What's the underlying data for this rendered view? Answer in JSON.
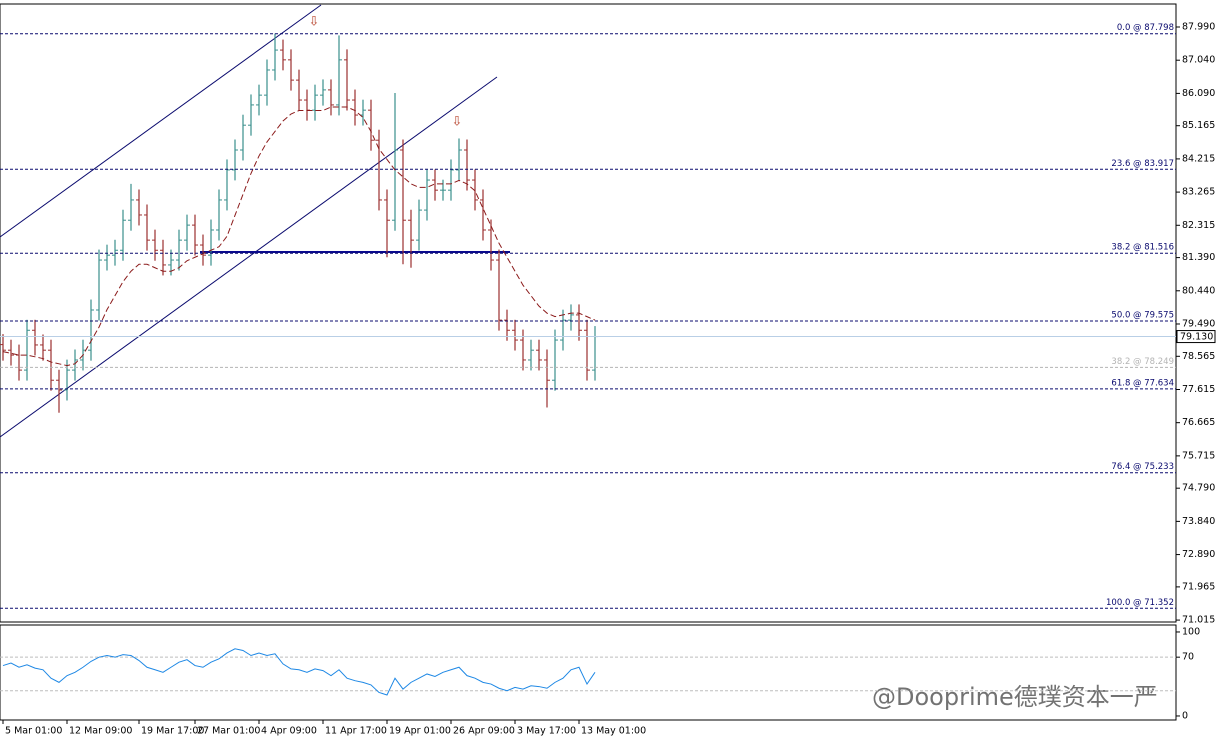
{
  "chart_data": [
    {
      "type": "ohlc",
      "categories": [
        "5 Mar 01:00",
        null,
        null,
        null,
        null,
        null,
        null,
        null,
        "12 Mar 09:00",
        null,
        null,
        null,
        null,
        null,
        null,
        null,
        null,
        "19 Mar 17:00",
        null,
        null,
        null,
        null,
        null,
        null,
        "27 Mar 01:00",
        null,
        null,
        null,
        null,
        null,
        null,
        null,
        "4 Apr 09:00",
        null,
        null,
        null,
        null,
        null,
        null,
        null,
        "11 Apr 17:00",
        null,
        null,
        null,
        null,
        null,
        null,
        null,
        "19 Apr 01:00",
        null,
        null,
        null,
        null,
        null,
        null,
        null,
        "26 Apr 09:00",
        null,
        null,
        null,
        null,
        null,
        null,
        null,
        "3 May 17:00",
        null,
        null,
        null,
        null,
        null,
        null,
        null,
        "13 May 01:00",
        null,
        null
      ],
      "open": [
        78.9,
        78.74,
        78.6,
        78.17,
        79.31,
        78.89,
        78.74,
        77.88,
        77.6,
        78.17,
        78.46,
        78.74,
        79.89,
        81.32,
        81.46,
        81.6,
        82.46,
        83.04,
        82.61,
        81.89,
        81.6,
        81.18,
        81.32,
        81.89,
        82.32,
        81.75,
        81.46,
        82.18,
        83.04,
        83.9,
        84.47,
        85.18,
        85.76,
        86.04,
        86.76,
        87.33,
        87.05,
        86.47,
        85.9,
        85.61,
        86.04,
        86.19,
        85.76,
        87.05,
        85.9,
        85.47,
        85.61,
        84.75,
        83.04,
        82.46,
        84.47,
        82.46,
        81.89,
        82.75,
        83.61,
        83.32,
        83.32,
        83.9,
        84.47,
        83.61,
        83.04,
        82.18,
        81.32,
        79.6,
        79.31,
        79.03,
        78.46,
        78.74,
        78.46,
        77.88,
        79.03,
        79.6,
        79.75,
        79.31,
        78.17
      ],
      "high": [
        79.2,
        79.04,
        78.9,
        79.61,
        79.61,
        79.19,
        79.04,
        78.18,
        78.47,
        78.76,
        79.04,
        80.19,
        81.62,
        81.76,
        81.9,
        82.76,
        83.5,
        83.34,
        82.91,
        82.19,
        81.9,
        81.62,
        82.19,
        82.62,
        82.62,
        82.05,
        82.48,
        83.34,
        84.2,
        84.77,
        85.48,
        86.06,
        86.34,
        87.06,
        87.8,
        87.63,
        87.35,
        86.77,
        86.2,
        86.34,
        86.49,
        86.49,
        87.75,
        87.35,
        86.2,
        85.91,
        85.91,
        85.05,
        83.34,
        86.1,
        84.77,
        82.76,
        83.05,
        83.91,
        83.91,
        83.62,
        84.2,
        84.8,
        84.77,
        83.91,
        83.34,
        82.48,
        81.62,
        79.9,
        79.61,
        79.33,
        79.04,
        79.04,
        78.76,
        79.33,
        79.9,
        80.05,
        80.05,
        79.61,
        79.43
      ],
      "low": [
        78.44,
        78.3,
        77.87,
        77.87,
        78.59,
        78.44,
        77.58,
        76.95,
        77.3,
        77.87,
        78.16,
        78.44,
        79.59,
        81.02,
        81.16,
        81.3,
        82.16,
        82.31,
        81.59,
        81.3,
        80.88,
        80.88,
        81.02,
        81.59,
        81.45,
        81.16,
        81.16,
        81.88,
        82.74,
        83.6,
        84.17,
        84.88,
        85.46,
        85.74,
        86.46,
        86.75,
        86.17,
        85.6,
        85.31,
        85.31,
        85.74,
        85.46,
        85.46,
        85.6,
        85.17,
        85.17,
        84.45,
        82.74,
        81.4,
        82.16,
        81.2,
        81.1,
        81.59,
        82.45,
        83.02,
        83.02,
        83.02,
        83.6,
        83.31,
        82.74,
        81.88,
        81.02,
        79.3,
        79.01,
        78.73,
        78.16,
        78.16,
        78.16,
        77.1,
        77.58,
        78.73,
        79.3,
        79.01,
        77.87,
        77.87
      ],
      "close": [
        78.74,
        78.6,
        78.17,
        79.31,
        78.89,
        78.74,
        77.88,
        77.6,
        78.17,
        78.46,
        78.74,
        79.89,
        81.32,
        81.46,
        81.6,
        82.46,
        83.04,
        82.61,
        81.89,
        81.6,
        81.18,
        81.32,
        81.89,
        82.32,
        81.75,
        81.46,
        82.18,
        83.04,
        83.9,
        84.47,
        85.18,
        85.76,
        86.04,
        86.76,
        87.33,
        87.05,
        86.47,
        85.9,
        85.61,
        86.04,
        86.19,
        85.76,
        87.05,
        85.9,
        85.47,
        85.61,
        84.75,
        83.04,
        82.46,
        84.47,
        82.46,
        81.89,
        82.75,
        83.61,
        83.32,
        83.32,
        83.9,
        84.47,
        83.61,
        83.04,
        82.18,
        81.32,
        79.6,
        79.31,
        79.03,
        78.46,
        78.74,
        78.46,
        77.88,
        79.03,
        79.6,
        79.75,
        79.31,
        78.17,
        79.13
      ],
      "color_up": "#3a8f8c",
      "color_down": "#9b2f2f",
      "ylim": [
        70.96,
        88.62
      ],
      "yticks": [
        {
          "value": 87.99,
          "label": "87.990"
        },
        {
          "value": 87.04,
          "label": "87.040"
        },
        {
          "value": 86.09,
          "label": "86.090"
        },
        {
          "value": 85.165,
          "label": "85.165"
        },
        {
          "value": 84.215,
          "label": "84.215"
        },
        {
          "value": 83.265,
          "label": "83.265"
        },
        {
          "value": 82.315,
          "label": "82.315"
        },
        {
          "value": 81.39,
          "label": "81.390"
        },
        {
          "value": 80.44,
          "label": "80.440"
        },
        {
          "value": 79.49,
          "label": "79.490"
        },
        {
          "value": 78.565,
          "label": "78.565"
        },
        {
          "value": 77.615,
          "label": "77.615"
        },
        {
          "value": 76.665,
          "label": "76.665"
        },
        {
          "value": 75.715,
          "label": "75.715"
        },
        {
          "value": 74.79,
          "label": "74.790"
        },
        {
          "value": 73.84,
          "label": "73.840"
        },
        {
          "value": 72.89,
          "label": "72.890"
        },
        {
          "value": 71.965,
          "label": "71.965"
        },
        {
          "value": 71.015,
          "label": "71.015"
        }
      ],
      "series": [
        {
          "type": "line",
          "color": "#8b1a1a",
          "style": "dashed",
          "values": [
            78.7,
            78.65,
            78.6,
            78.6,
            78.55,
            78.5,
            78.4,
            78.35,
            78.3,
            78.35,
            78.6,
            79.0,
            79.4,
            79.9,
            80.3,
            80.7,
            81.0,
            81.2,
            81.2,
            81.1,
            81.0,
            81.0,
            81.1,
            81.3,
            81.4,
            81.5,
            81.6,
            81.7,
            82.0,
            82.6,
            83.2,
            83.8,
            84.3,
            84.7,
            85.0,
            85.3,
            85.5,
            85.6,
            85.6,
            85.6,
            85.6,
            85.7,
            85.7,
            85.7,
            85.6,
            85.4,
            85.0,
            84.5,
            84.2,
            83.9,
            83.7,
            83.5,
            83.4,
            83.4,
            83.5,
            83.5,
            83.5,
            83.6,
            83.5,
            83.3,
            82.8,
            82.3,
            81.8,
            81.4,
            81.0,
            80.6,
            80.3,
            80.0,
            79.8,
            79.7,
            79.75,
            79.8,
            79.8,
            79.7,
            79.6
          ]
        }
      ],
      "fib_levels": [
        {
          "value": 87.798,
          "label": "0.0 @ 87.798"
        },
        {
          "value": 83.917,
          "label": "23.6 @ 83.917"
        },
        {
          "value": 81.516,
          "label": "38.2 @ 81.516"
        },
        {
          "value": 79.575,
          "label": "50.0 @ 79.575"
        },
        {
          "value": 77.634,
          "label": "61.8 @ 77.634"
        },
        {
          "value": 75.233,
          "label": "76.4 @ 75.233"
        },
        {
          "value": 71.352,
          "label": "100.0 @ 71.352"
        }
      ],
      "fib_color": "#0a0a6e",
      "extra_levels": [
        {
          "value": 78.249,
          "label": "38.2 @ 78.249",
          "color": "#b4b4b4"
        }
      ],
      "last_price": {
        "value": 79.13,
        "label": "79.130",
        "color": "#b9cfe6"
      }
    },
    {
      "type": "line",
      "color": "#1e88e5",
      "values": [
        60,
        63,
        58,
        61,
        57,
        55,
        45,
        40,
        48,
        52,
        58,
        65,
        70,
        72,
        70,
        73,
        72,
        66,
        58,
        55,
        52,
        58,
        64,
        67,
        60,
        58,
        64,
        68,
        75,
        80,
        78,
        72,
        75,
        72,
        74,
        62,
        56,
        55,
        52,
        56,
        54,
        48,
        55,
        45,
        42,
        40,
        37,
        28,
        25,
        45,
        32,
        40,
        45,
        50,
        47,
        52,
        55,
        58,
        48,
        45,
        40,
        38,
        33,
        30,
        34,
        32,
        36,
        35,
        33,
        40,
        45,
        55,
        58,
        38,
        52
      ],
      "ylim": [
        -4.8,
        108.3
      ],
      "yticks": [
        100,
        70,
        0
      ],
      "levels": [
        30,
        70
      ]
    }
  ],
  "watermark": "@Dooprime德璞资本一严"
}
